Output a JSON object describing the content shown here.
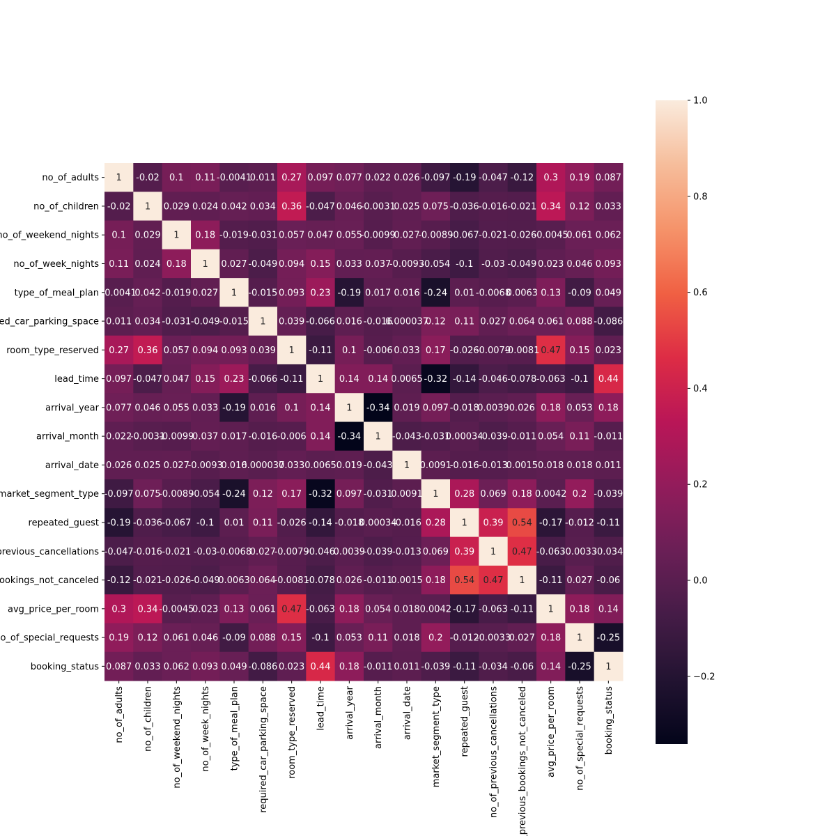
{
  "chart_data": {
    "type": "heatmap",
    "title": "",
    "xlabel": "",
    "ylabel": "",
    "labels": [
      "no_of_adults",
      "no_of_children",
      "no_of_weekend_nights",
      "no_of_week_nights",
      "type_of_meal_plan",
      "required_car_parking_space",
      "room_type_reserved",
      "lead_time",
      "arrival_year",
      "arrival_month",
      "arrival_date",
      "market_segment_type",
      "repeated_guest",
      "no_of_previous_cancellations",
      "no_of_previous_bookings_not_canceled",
      "avg_price_per_room",
      "no_of_special_requests",
      "booking_status"
    ],
    "matrix": [
      [
        1,
        -0.02,
        0.1,
        0.11,
        -0.0041,
        0.011,
        0.27,
        0.097,
        0.077,
        0.022,
        0.026,
        -0.097,
        -0.19,
        -0.047,
        -0.12,
        0.3,
        0.19,
        0.087
      ],
      [
        -0.02,
        1,
        0.029,
        0.024,
        0.042,
        0.034,
        0.36,
        -0.047,
        0.046,
        -0.0031,
        0.025,
        0.075,
        -0.036,
        -0.016,
        -0.021,
        0.34,
        0.12,
        0.033
      ],
      [
        0.1,
        0.029,
        1,
        0.18,
        -0.019,
        -0.031,
        0.057,
        0.047,
        0.055,
        -0.0099,
        0.027,
        -0.0089,
        -0.067,
        -0.021,
        -0.026,
        -0.0045,
        0.061,
        0.062
      ],
      [
        0.11,
        0.024,
        0.18,
        1,
        0.027,
        -0.049,
        0.094,
        0.15,
        0.033,
        0.037,
        -0.0093,
        -0.054,
        -0.1,
        -0.03,
        -0.049,
        0.023,
        0.046,
        0.093
      ],
      [
        -0.0041,
        0.042,
        -0.019,
        0.027,
        1,
        -0.015,
        0.093,
        0.23,
        -0.19,
        0.017,
        0.016,
        -0.24,
        0.01,
        -0.0068,
        0.0063,
        0.13,
        -0.09,
        0.049
      ],
      [
        0.011,
        0.034,
        -0.031,
        -0.049,
        -0.015,
        1,
        0.039,
        -0.066,
        0.016,
        -0.016,
        3.7e-05,
        0.12,
        0.11,
        0.027,
        0.064,
        0.061,
        0.088,
        -0.086
      ],
      [
        0.27,
        0.36,
        0.057,
        0.094,
        0.093,
        0.039,
        1,
        -0.11,
        0.1,
        -0.006,
        0.033,
        0.17,
        -0.026,
        -0.0079,
        -0.0081,
        0.47,
        0.15,
        0.023
      ],
      [
        0.097,
        -0.047,
        0.047,
        0.15,
        0.23,
        -0.066,
        -0.11,
        1,
        0.14,
        0.14,
        0.0065,
        -0.32,
        -0.14,
        -0.046,
        -0.078,
        -0.063,
        -0.1,
        0.44
      ],
      [
        0.077,
        0.046,
        0.055,
        0.033,
        -0.19,
        0.016,
        0.1,
        0.14,
        1,
        -0.34,
        0.019,
        0.097,
        -0.018,
        0.0039,
        0.026,
        0.18,
        0.053,
        0.18
      ],
      [
        0.022,
        -0.0031,
        -0.0099,
        0.037,
        0.017,
        -0.016,
        -0.006,
        0.14,
        -0.34,
        1,
        -0.043,
        -0.031,
        0.00034,
        -0.039,
        -0.011,
        0.054,
        0.11,
        -0.011
      ],
      [
        0.026,
        0.025,
        0.027,
        -0.0093,
        0.016,
        3.7e-05,
        0.033,
        0.0065,
        0.019,
        -0.043,
        1,
        0.0091,
        -0.016,
        -0.013,
        0.0015,
        0.018,
        0.018,
        0.011
      ],
      [
        -0.097,
        0.075,
        -0.0089,
        -0.054,
        -0.24,
        0.12,
        0.17,
        -0.32,
        0.097,
        -0.031,
        0.0091,
        1,
        0.28,
        0.069,
        0.18,
        0.0042,
        0.2,
        -0.039
      ],
      [
        -0.19,
        -0.036,
        -0.067,
        -0.1,
        0.01,
        0.11,
        -0.026,
        -0.14,
        -0.018,
        0.00034,
        -0.016,
        0.28,
        1,
        0.39,
        0.54,
        -0.17,
        -0.012,
        -0.11
      ],
      [
        -0.047,
        -0.016,
        -0.021,
        -0.03,
        -0.0068,
        0.027,
        -0.0079,
        -0.046,
        0.0039,
        -0.039,
        -0.013,
        0.069,
        0.39,
        1,
        0.47,
        -0.063,
        -0.0033,
        -0.034
      ],
      [
        -0.12,
        -0.021,
        -0.026,
        -0.049,
        0.0063,
        0.064,
        -0.0081,
        -0.078,
        0.026,
        -0.011,
        0.0015,
        0.18,
        0.54,
        0.47,
        1,
        -0.11,
        0.027,
        -0.06
      ],
      [
        0.3,
        0.34,
        -0.0045,
        0.023,
        0.13,
        0.061,
        0.47,
        -0.063,
        0.18,
        0.054,
        0.018,
        0.0042,
        -0.17,
        -0.063,
        -0.11,
        1,
        0.18,
        0.14
      ],
      [
        0.19,
        0.12,
        0.061,
        0.046,
        -0.09,
        0.088,
        0.15,
        -0.1,
        0.053,
        0.11,
        0.018,
        0.2,
        -0.012,
        -0.0033,
        0.027,
        0.18,
        1,
        -0.25
      ],
      [
        0.087,
        0.033,
        0.062,
        0.093,
        0.049,
        -0.086,
        0.023,
        0.44,
        0.18,
        -0.011,
        0.011,
        -0.039,
        -0.11,
        -0.034,
        -0.06,
        0.14,
        -0.25,
        1
      ]
    ],
    "vmin": -0.341,
    "vmax": 1.0,
    "colormap": "rocket",
    "colorbar": {
      "ticks": [
        -0.2,
        0.0,
        0.2,
        0.4,
        0.6,
        0.8,
        1.0
      ],
      "tick_labels": [
        "−0.2",
        "0.0",
        "0.2",
        "0.4",
        "0.6",
        "0.8",
        "1.0"
      ],
      "placement": "right"
    },
    "annot_dark_color": "#262626",
    "annot_light_color": "#ffffff",
    "grid": false
  }
}
